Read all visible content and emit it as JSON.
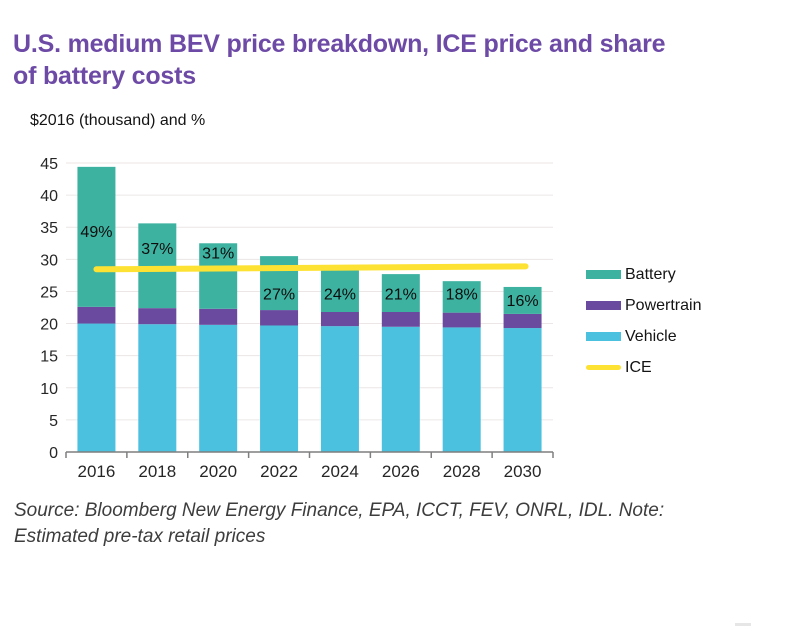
{
  "header": {
    "title_line1": "U.S. medium BEV price breakdown, ICE price and share",
    "title_line2": "of battery costs",
    "units_label": "$2016 (thousand) and %"
  },
  "chart_data": {
    "type": "bar",
    "stacked": true,
    "title": "U.S. medium BEV price breakdown, ICE price and share of battery costs",
    "ylabel": "$2016 (thousand) and %",
    "xlabel": "",
    "categories": [
      "2016",
      "2018",
      "2020",
      "2022",
      "2024",
      "2026",
      "2028",
      "2030"
    ],
    "series": [
      {
        "name": "Vehicle",
        "color": "#4bc0df",
        "values": [
          20.0,
          19.9,
          19.8,
          19.7,
          19.6,
          19.5,
          19.4,
          19.3
        ]
      },
      {
        "name": "Powertrain",
        "color": "#6a4a9e",
        "values": [
          2.6,
          2.5,
          2.5,
          2.4,
          2.2,
          2.3,
          2.3,
          2.2
        ]
      },
      {
        "name": "Battery",
        "color": "#3eb2a0",
        "values": [
          21.8,
          13.2,
          10.2,
          8.4,
          6.8,
          5.9,
          4.9,
          4.2
        ]
      }
    ],
    "bar_totals": [
      44.4,
      35.6,
      32.5,
      30.5,
      28.6,
      27.7,
      26.6,
      25.7
    ],
    "line_series": {
      "name": "ICE",
      "color": "#fee233",
      "start_value": 28.45,
      "end_value": 28.9
    },
    "battery_share_labels": [
      "49%",
      "37%",
      "31%",
      "27%",
      "24%",
      "21%",
      "18%",
      "16%"
    ],
    "share_label_heights": [
      34.3,
      31.7,
      31.0,
      24.6,
      24.6,
      24.6,
      24.6,
      23.6
    ],
    "ylim": [
      0,
      45
    ],
    "ytick_step": 5,
    "grid": true,
    "gridline_color": "#ece6e6",
    "axis_color": "#7f7f7f",
    "tick_label_color": "#262626",
    "legend_position": "right"
  },
  "legend": {
    "items": [
      {
        "label": "Battery",
        "color": "#3eb2a0",
        "type": "box"
      },
      {
        "label": "Powertrain",
        "color": "#6a4a9e",
        "type": "box"
      },
      {
        "label": "Vehicle",
        "color": "#4bc0df",
        "type": "box"
      },
      {
        "label": "ICE",
        "color": "#fee233",
        "type": "line"
      }
    ]
  },
  "footer": {
    "source_line1": "Source: Bloomberg New Energy Finance, EPA, ICCT, FEV, ONRL, IDL. Note:",
    "source_line2": "Estimated pre-tax retail prices"
  }
}
